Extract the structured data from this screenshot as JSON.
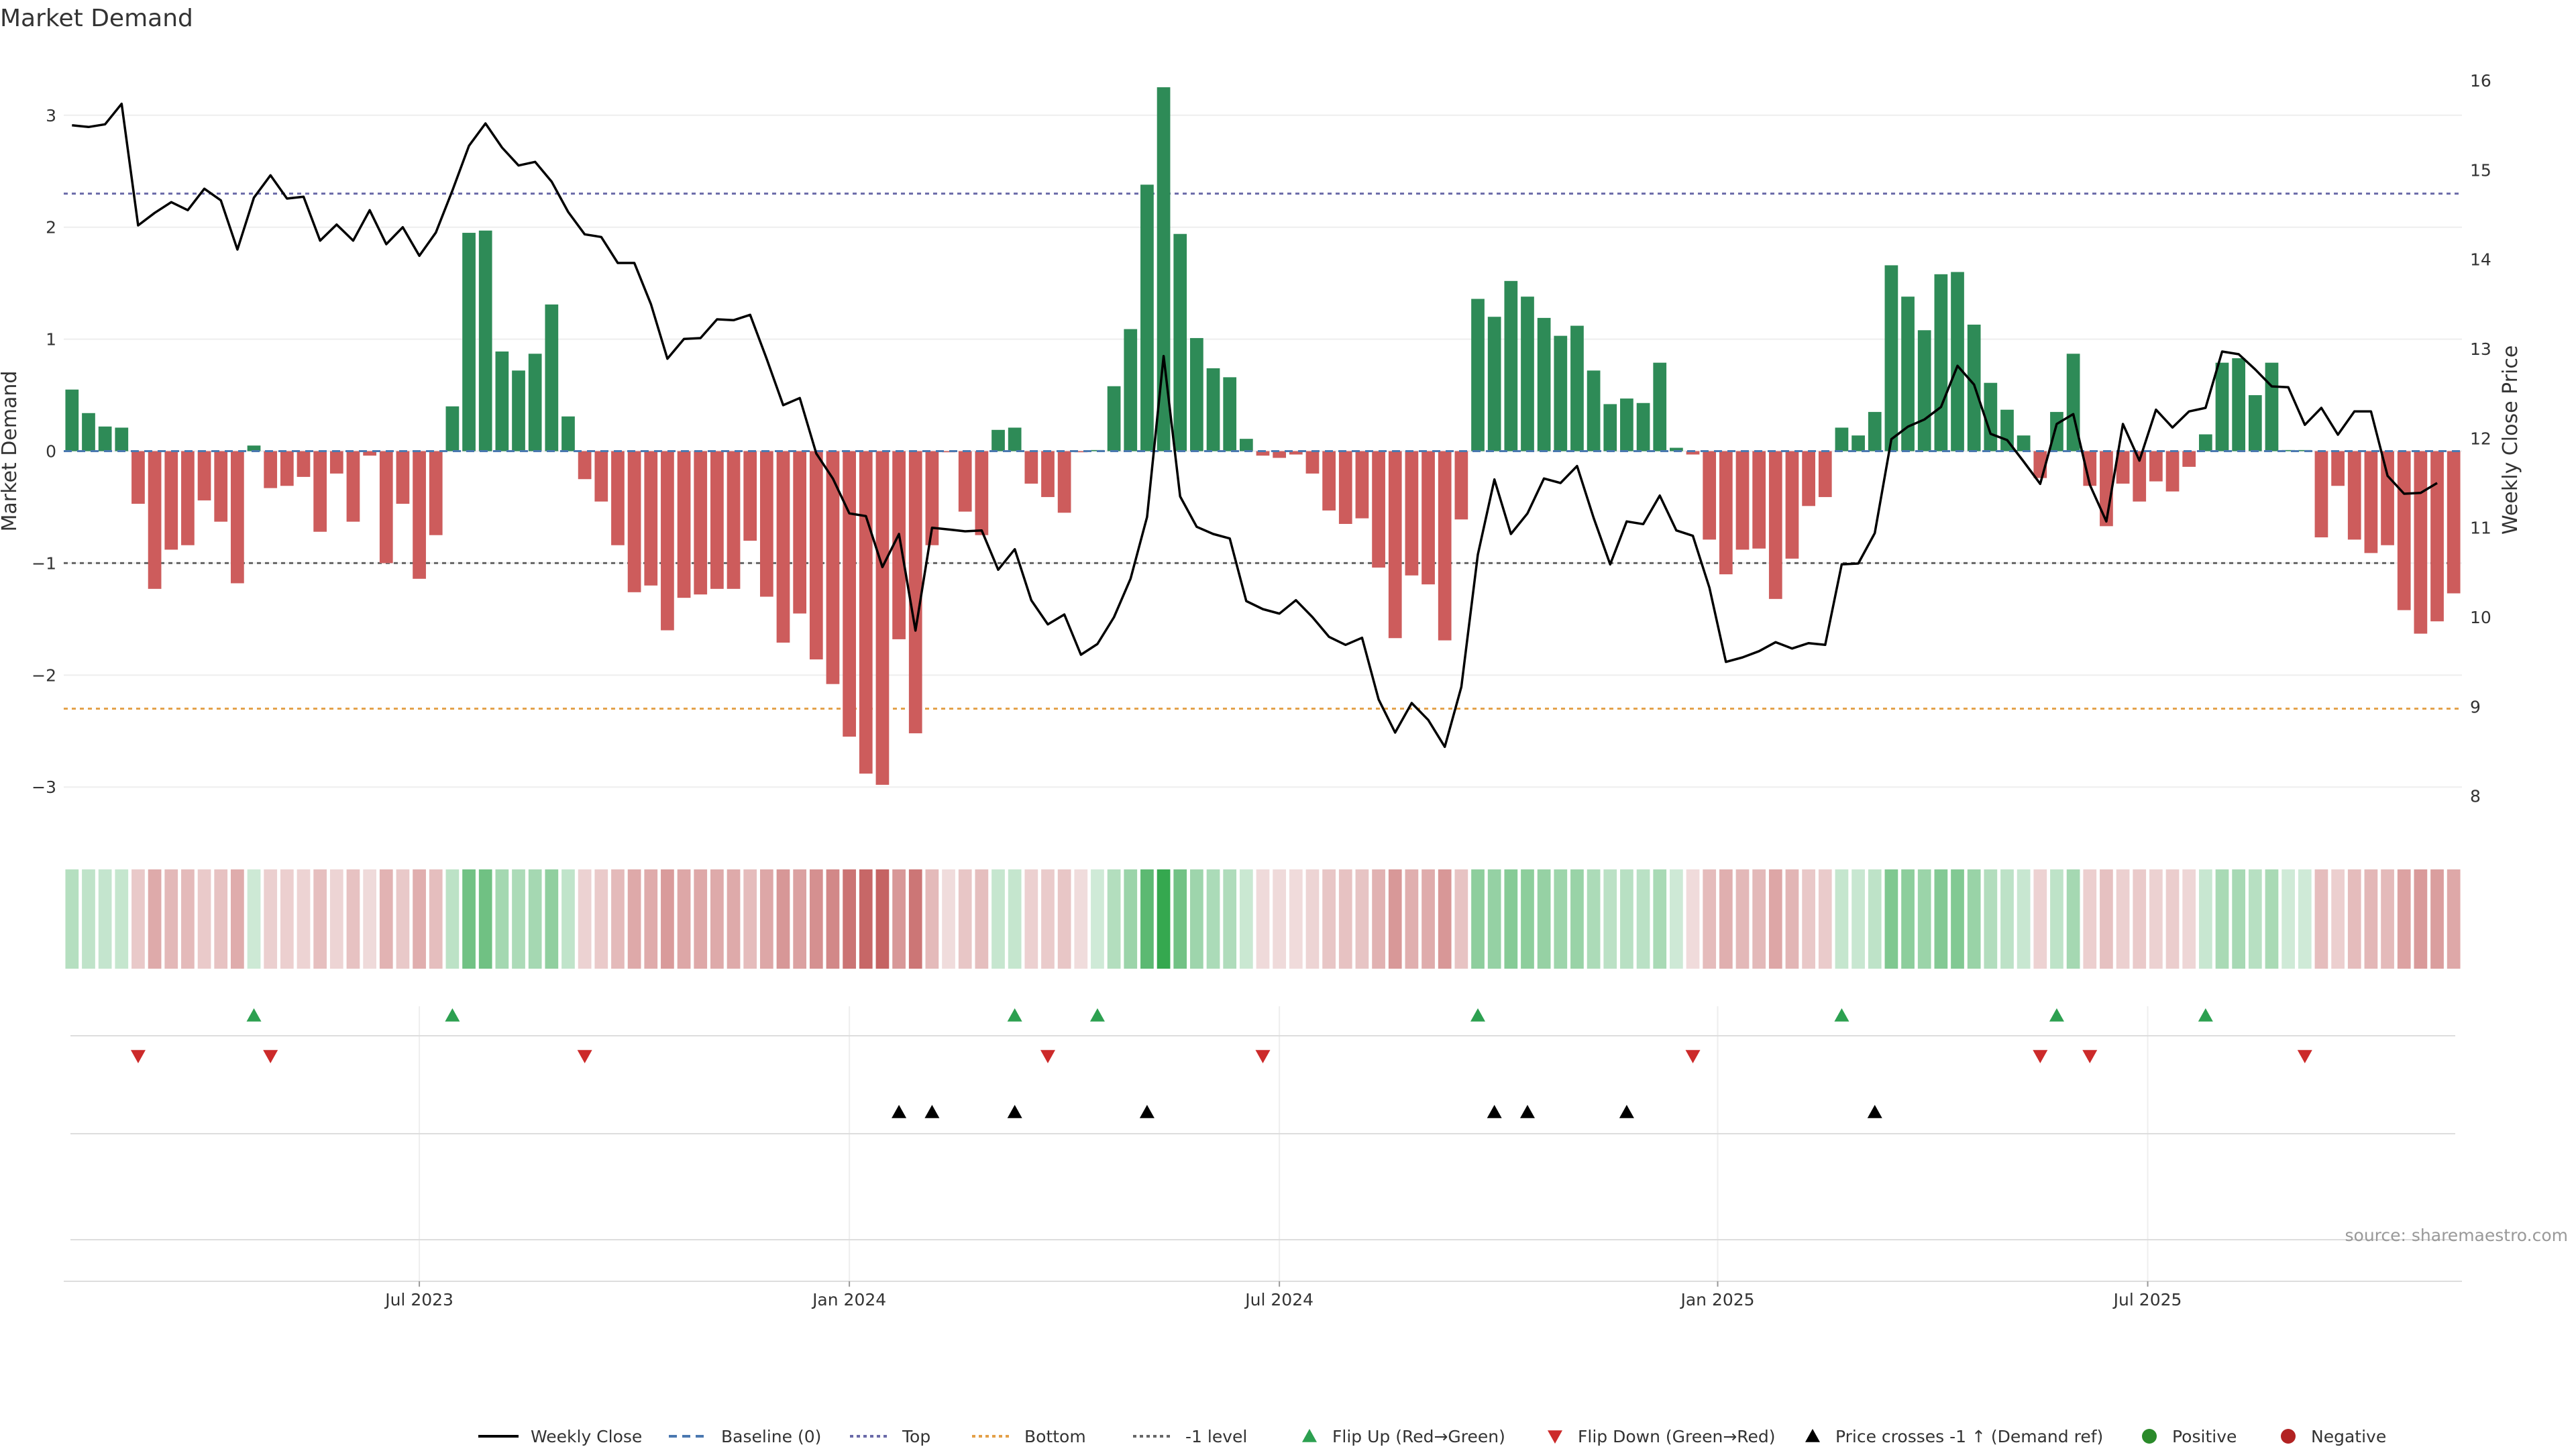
{
  "chart_data": {
    "type": "bar+line",
    "title": "Market Demand",
    "ylabel_left": "Market Demand",
    "ylabel_right": "Weekly Close Price",
    "y_left_ticks": [
      -3,
      -2,
      -1,
      0,
      1,
      2,
      3
    ],
    "y_left_tick_labels": [
      "−3",
      "−2",
      "−1",
      "0",
      "1",
      "2",
      "3"
    ],
    "y_left_range": [
      -3.4,
      3.55
    ],
    "y_right_ticks": [
      8,
      9,
      10,
      11,
      12,
      13,
      14,
      15,
      16
    ],
    "y_right_tick_labels": [
      "8",
      "9",
      "10",
      "11",
      "12",
      "13",
      "14",
      "15",
      "16"
    ],
    "y_right_range": [
      7.6,
      16.3
    ],
    "x_tick_labels": [
      "Jul 2023",
      "Jan 2024",
      "Jul 2024",
      "Jan 2025",
      "Jul 2025"
    ],
    "x_tick_weeks": [
      21,
      47,
      73,
      99.5,
      125.5
    ],
    "levels": {
      "top": 2.3,
      "bottom": -2.3,
      "minus_one": -1.0
    },
    "demand": [
      0.55,
      0.34,
      0.22,
      0.21,
      -0.47,
      -1.23,
      -0.88,
      -0.84,
      -0.44,
      -0.63,
      -1.18,
      0.05,
      -0.33,
      -0.31,
      -0.23,
      -0.72,
      -0.2,
      -0.63,
      -0.04,
      -1.0,
      -0.47,
      -1.14,
      -0.75,
      0.4,
      1.95,
      1.97,
      0.89,
      0.72,
      0.87,
      1.31,
      0.31,
      -0.25,
      -0.45,
      -0.84,
      -1.26,
      -1.2,
      -1.6,
      -1.31,
      -1.28,
      -1.23,
      -1.23,
      -0.8,
      -1.3,
      -1.71,
      -1.45,
      -1.86,
      -2.08,
      -2.55,
      -2.88,
      -2.98,
      -1.68,
      -2.52,
      -0.84,
      -0.01,
      -0.54,
      -0.75,
      0.19,
      0.21,
      -0.29,
      -0.41,
      -0.55,
      -0.01,
      0.01,
      0.58,
      1.09,
      2.38,
      3.25,
      1.94,
      1.01,
      0.74,
      0.66,
      0.11,
      -0.04,
      -0.06,
      -0.03,
      -0.2,
      -0.53,
      -0.65,
      -0.6,
      -1.04,
      -1.67,
      -1.11,
      -1.19,
      -1.69,
      -0.61,
      1.36,
      1.2,
      1.52,
      1.38,
      1.19,
      1.03,
      1.12,
      0.72,
      0.42,
      0.47,
      0.43,
      0.79,
      0.03,
      -0.03,
      -0.79,
      -1.1,
      -0.88,
      -0.87,
      -1.32,
      -0.96,
      -0.49,
      -0.41,
      0.21,
      0.14,
      0.35,
      1.66,
      1.38,
      1.08,
      1.58,
      1.6,
      1.13,
      0.61,
      0.37,
      0.14,
      -0.24,
      0.35,
      0.87,
      -0.31,
      -0.67,
      -0.29,
      -0.45,
      -0.27,
      -0.36,
      -0.14,
      0.15,
      0.79,
      0.83,
      0.5,
      0.79,
      0.01,
      0.01,
      -0.77,
      -0.31,
      -0.79,
      -0.91,
      -0.84,
      -1.42,
      -1.63,
      -1.52,
      -1.27
    ],
    "weekly_close": [
      15.5,
      15.48,
      15.51,
      15.74,
      14.38,
      14.52,
      14.64,
      14.55,
      14.79,
      14.66,
      14.11,
      14.69,
      14.94,
      14.68,
      14.7,
      14.21,
      14.39,
      14.21,
      14.55,
      14.17,
      14.36,
      14.04,
      14.3,
      14.77,
      15.27,
      15.52,
      15.25,
      15.05,
      15.09,
      14.87,
      14.53,
      14.28,
      14.25,
      13.96,
      13.96,
      13.5,
      12.89,
      13.11,
      13.12,
      13.33,
      13.32,
      13.38,
      12.89,
      12.37,
      12.45,
      11.83,
      11.55,
      11.16,
      11.13,
      10.56,
      10.93,
      9.85,
      11.0,
      10.98,
      10.96,
      10.97,
      10.53,
      10.76,
      10.19,
      9.92,
      10.03,
      9.58,
      9.7,
      10.0,
      10.43,
      11.12,
      12.92,
      11.35,
      11.01,
      10.93,
      10.88,
      10.18,
      10.09,
      10.04,
      10.19,
      10.0,
      9.78,
      9.69,
      9.77,
      9.08,
      8.71,
      9.04,
      8.85,
      8.55,
      9.22,
      10.7,
      11.54,
      10.93,
      11.16,
      11.55,
      11.5,
      11.69,
      11.11,
      10.59,
      11.07,
      11.04,
      11.36,
      10.97,
      10.91,
      10.33,
      9.5,
      9.55,
      9.62,
      9.72,
      9.65,
      9.71,
      9.69,
      10.59,
      10.6,
      10.94,
      11.99,
      12.13,
      12.21,
      12.35,
      12.81,
      12.6,
      12.05,
      11.98,
      11.74,
      11.49,
      12.16,
      12.27,
      11.48,
      11.07,
      12.16,
      11.75,
      12.32,
      12.12,
      12.3,
      12.34,
      12.97,
      12.94,
      12.77,
      12.58,
      12.57,
      12.15,
      12.34,
      12.04,
      12.3,
      12.3,
      11.58,
      11.38,
      11.39,
      11.5
    ],
    "flip_up_weeks": [
      11,
      23,
      57,
      62,
      85,
      107,
      120,
      129
    ],
    "flip_down_weeks": [
      4,
      12,
      31,
      59,
      72,
      98,
      119,
      122,
      135
    ],
    "price_cross_weeks": [
      50,
      52,
      57,
      65,
      86,
      88,
      94,
      109
    ],
    "legend": [
      "Weekly Close",
      "Baseline (0)",
      "Top",
      "Bottom",
      "-1 level",
      "Flip Up (Red→Green)",
      "Flip Down (Green→Red)",
      "Price crosses -1 ↑ (Demand ref)",
      "Positive",
      "Negative"
    ],
    "source": "source: sharemaestro.com",
    "colors": {
      "positive": "#2e8b57",
      "negative": "#cd5c5c",
      "line": "#000000",
      "top": "#6a6aa8",
      "bottom": "#e3a048",
      "minus_one": "#666666",
      "flip_up": "#2ca050",
      "flip_down": "#cc2a2a",
      "legend_positive": "#2a8a2a",
      "legend_negative": "#b22222"
    }
  }
}
